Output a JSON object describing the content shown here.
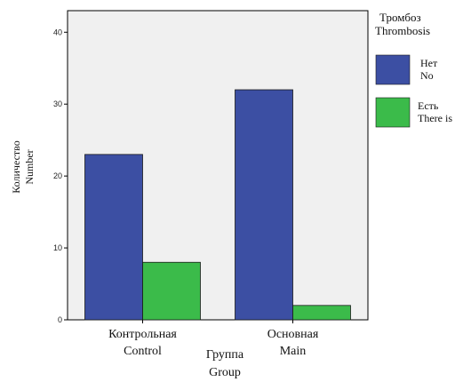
{
  "chart_data": {
    "type": "bar",
    "categories": [
      [
        "Контрольная",
        "Control"
      ],
      [
        "Основная",
        "Main"
      ]
    ],
    "series": [
      {
        "name": [
          "Нет",
          "No"
        ],
        "values": [
          23,
          32
        ],
        "color": "#3c4fa3"
      },
      {
        "name": [
          "Есть",
          "There is"
        ],
        "values": [
          8,
          2
        ],
        "color": "#3bbb4a"
      }
    ],
    "xlabel": [
      "Группа",
      "Group"
    ],
    "ylabel": [
      "Количество",
      "Number"
    ],
    "ylim": [
      0,
      43
    ],
    "yticks": [
      0,
      10,
      20,
      30,
      40
    ],
    "legend_title": [
      "Тромбоз",
      "Thrombosis"
    ],
    "legend_position": "right",
    "plot_background": "#f0f0f0",
    "grid": false
  }
}
